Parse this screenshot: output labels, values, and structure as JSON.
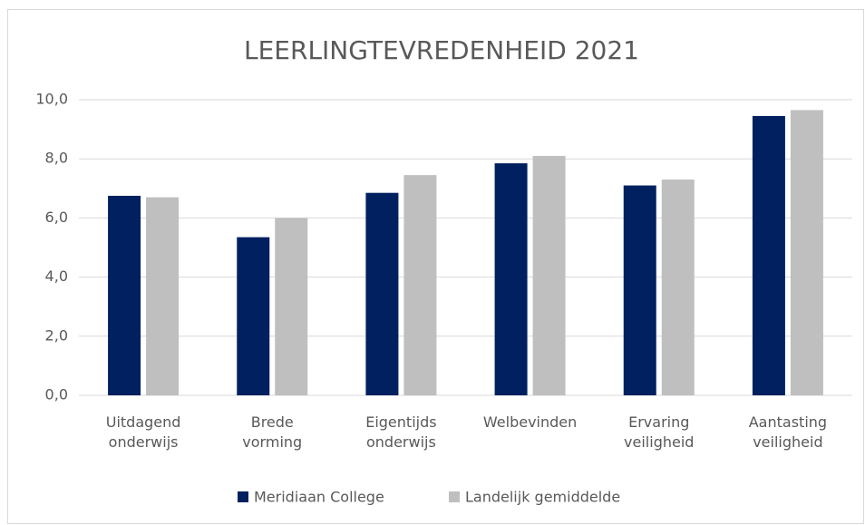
{
  "chart_data": {
    "type": "bar",
    "title": "LEERLINGTEVREDENHEID 2021",
    "categories": [
      "Uitdagend onderwijs",
      "Brede vorming",
      "Eigentijds onderwijs",
      "Welbevinden",
      "Ervaring veiligheid",
      "Aantasting veiligheid"
    ],
    "series": [
      {
        "name": "Meridiaan College",
        "color": "#002060",
        "values": [
          6.75,
          5.35,
          6.85,
          7.85,
          7.1,
          9.45
        ]
      },
      {
        "name": "Landelijk gemiddelde",
        "color": "#bfbfbf",
        "values": [
          6.7,
          6.0,
          7.45,
          8.1,
          7.3,
          9.65
        ]
      }
    ],
    "ylim": [
      0,
      10
    ],
    "yticks": [
      {
        "value": 0,
        "label": "0,0"
      },
      {
        "value": 2,
        "label": "2,0"
      },
      {
        "value": 4,
        "label": "4,0"
      },
      {
        "value": 6,
        "label": "6,0"
      },
      {
        "value": 8,
        "label": "8,0"
      },
      {
        "value": 10,
        "label": "10,0"
      }
    ],
    "grid": true,
    "legend": "bottom"
  }
}
